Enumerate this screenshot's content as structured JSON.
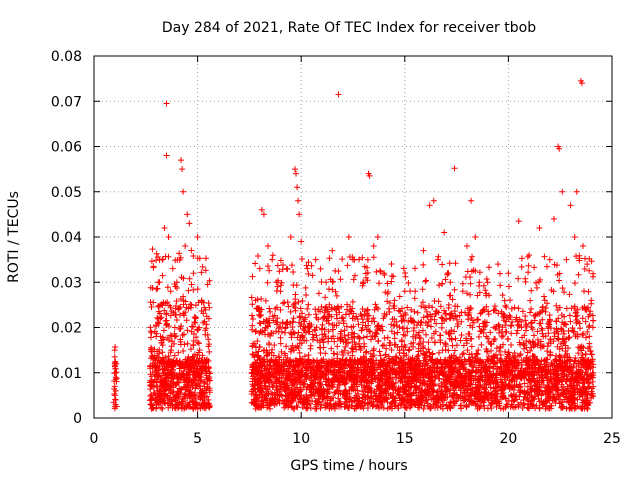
{
  "chart_data": {
    "type": "scatter",
    "title": "Day 284 of 2021, Rate Of TEC Index for receiver tbob",
    "xlabel": "GPS time / hours",
    "ylabel": "ROTI / TECUs",
    "xlim": [
      0,
      25
    ],
    "ylim": [
      0,
      0.08
    ],
    "xticks": [
      0,
      5,
      10,
      15,
      20,
      25
    ],
    "xtick_labels": [
      "0",
      "5",
      "10",
      "15",
      "20",
      "25"
    ],
    "yticks": [
      0,
      0.01,
      0.02,
      0.03,
      0.04,
      0.05,
      0.06,
      0.07,
      0.08
    ],
    "ytick_labels": [
      "0",
      "0.01",
      "0.02",
      "0.03",
      "0.04",
      "0.05",
      "0.06",
      "0.07",
      "0.08"
    ],
    "grid": true,
    "marker": "plus",
    "color": "#ff0000",
    "points": [
      [
        1.0,
        0.015
      ],
      [
        1.0,
        0.0135
      ],
      [
        1.05,
        0.009
      ],
      [
        1.0,
        0.007
      ],
      [
        1.05,
        0.006
      ],
      [
        1.0,
        0.005
      ],
      [
        1.05,
        0.004
      ],
      [
        2.8,
        0.008
      ],
      [
        2.9,
        0.013
      ],
      [
        3.0,
        0.018
      ],
      [
        3.1,
        0.03
      ],
      [
        3.2,
        0.022
      ],
      [
        3.3,
        0.035
      ],
      [
        3.4,
        0.042
      ],
      [
        3.5,
        0.0695
      ],
      [
        3.5,
        0.058
      ],
      [
        3.6,
        0.04
      ],
      [
        3.7,
        0.028
      ],
      [
        3.8,
        0.033
      ],
      [
        3.9,
        0.02
      ],
      [
        4.0,
        0.03
      ],
      [
        4.2,
        0.057
      ],
      [
        4.25,
        0.055
      ],
      [
        4.3,
        0.05
      ],
      [
        4.4,
        0.038
      ],
      [
        4.5,
        0.045
      ],
      [
        4.6,
        0.043
      ],
      [
        4.7,
        0.025
      ],
      [
        4.8,
        0.032
      ],
      [
        4.9,
        0.022
      ],
      [
        5.0,
        0.04
      ],
      [
        5.1,
        0.015
      ],
      [
        5.2,
        0.026
      ],
      [
        5.3,
        0.012
      ],
      [
        7.8,
        0.026
      ],
      [
        8.0,
        0.033
      ],
      [
        8.1,
        0.046
      ],
      [
        8.2,
        0.045
      ],
      [
        8.4,
        0.038
      ],
      [
        8.6,
        0.035
      ],
      [
        8.8,
        0.03
      ],
      [
        9.0,
        0.028
      ],
      [
        9.3,
        0.033
      ],
      [
        9.5,
        0.04
      ],
      [
        9.7,
        0.055
      ],
      [
        9.75,
        0.054
      ],
      [
        9.8,
        0.051
      ],
      [
        9.85,
        0.048
      ],
      [
        9.9,
        0.045
      ],
      [
        10.0,
        0.039
      ],
      [
        10.3,
        0.033
      ],
      [
        10.7,
        0.035
      ],
      [
        11.2,
        0.03
      ],
      [
        11.5,
        0.037
      ],
      [
        11.8,
        0.0715
      ],
      [
        12.3,
        0.04
      ],
      [
        12.5,
        0.035
      ],
      [
        13.0,
        0.03
      ],
      [
        13.25,
        0.054
      ],
      [
        13.3,
        0.0535
      ],
      [
        13.5,
        0.038
      ],
      [
        13.7,
        0.04
      ],
      [
        14.0,
        0.032
      ],
      [
        14.5,
        0.026
      ],
      [
        15.0,
        0.028
      ],
      [
        15.5,
        0.028
      ],
      [
        15.9,
        0.037
      ],
      [
        16.2,
        0.047
      ],
      [
        16.4,
        0.048
      ],
      [
        16.6,
        0.035
      ],
      [
        16.9,
        0.041
      ],
      [
        17.2,
        0.03
      ],
      [
        17.4,
        0.0552
      ],
      [
        17.8,
        0.028
      ],
      [
        18.0,
        0.038
      ],
      [
        18.2,
        0.048
      ],
      [
        18.4,
        0.04
      ],
      [
        18.6,
        0.03
      ],
      [
        19.0,
        0.03
      ],
      [
        19.5,
        0.034
      ],
      [
        20.0,
        0.032
      ],
      [
        20.5,
        0.0435
      ],
      [
        21.0,
        0.036
      ],
      [
        21.5,
        0.042
      ],
      [
        22.0,
        0.035
      ],
      [
        22.2,
        0.044
      ],
      [
        22.4,
        0.06
      ],
      [
        22.45,
        0.0595
      ],
      [
        22.6,
        0.05
      ],
      [
        22.8,
        0.035
      ],
      [
        23.0,
        0.047
      ],
      [
        23.2,
        0.04
      ],
      [
        23.3,
        0.05
      ],
      [
        23.5,
        0.0745
      ],
      [
        23.55,
        0.074
      ],
      [
        23.6,
        0.038
      ],
      [
        23.8,
        0.034
      ],
      [
        24.0,
        0.026
      ]
    ],
    "segments": [
      {
        "start": 0.95,
        "end": 1.1,
        "typ": 0.006,
        "peak": 0.01,
        "spread": 0.4
      },
      {
        "start": 2.7,
        "end": 5.6,
        "typ": 0.008,
        "peak": 0.03,
        "spread": 1.0
      },
      {
        "start": 7.6,
        "end": 24.1,
        "typ": 0.008,
        "peak": 0.028,
        "spread": 1.0
      }
    ]
  }
}
